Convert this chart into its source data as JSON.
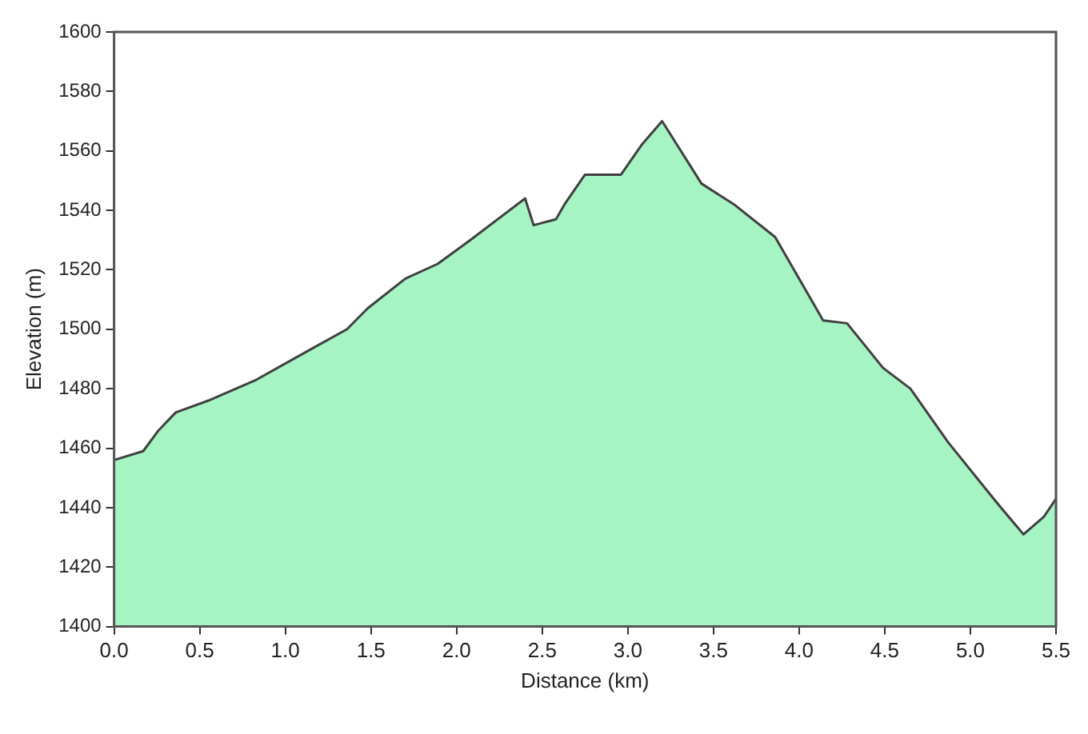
{
  "chart_data": {
    "type": "area",
    "xlabel": "Distance (km)",
    "ylabel": "Elevation (m)",
    "x": [
      0,
      0.17,
      0.26,
      0.36,
      0.55,
      0.83,
      1.14,
      1.36,
      1.48,
      1.7,
      1.89,
      2.08,
      2.4,
      2.45,
      2.58,
      2.63,
      2.75,
      2.96,
      3.08,
      3.2,
      3.43,
      3.62,
      3.86,
      4.14,
      4.28,
      4.49,
      4.65,
      4.87,
      5.15,
      5.31,
      5.43,
      5.5
    ],
    "series": [
      {
        "color": "#404040",
        "values": [
          1456,
          1459,
          1466,
          1472,
          1476,
          1483,
          1493,
          1500,
          1507,
          1517,
          1522,
          1530,
          1544,
          1535,
          1537,
          1542,
          1552,
          1552,
          1562,
          1570,
          1549,
          1542,
          1531,
          1503,
          1502,
          1487,
          1480,
          1462,
          1442,
          1431,
          1437,
          1443
        ]
      }
    ],
    "xlim": [
      0,
      5.5
    ],
    "ylim": [
      1400,
      1600
    ],
    "xticks": [
      {
        "value": 0,
        "label": "0.0"
      },
      {
        "value": 0.5,
        "label": "0.5"
      },
      {
        "value": 1,
        "label": "1.0"
      },
      {
        "value": 1.5,
        "label": "1.5"
      },
      {
        "value": 2,
        "label": "2.0"
      },
      {
        "value": 2.5,
        "label": "2.5"
      },
      {
        "value": 3,
        "label": "3.0"
      },
      {
        "value": 3.5,
        "label": "3.5"
      },
      {
        "value": 4,
        "label": "4.0"
      },
      {
        "value": 4.5,
        "label": "4.5"
      },
      {
        "value": 5,
        "label": "5.0"
      },
      {
        "value": 5.5,
        "label": "5.5"
      }
    ],
    "yticks": [
      1400,
      1420,
      1440,
      1460,
      1480,
      1500,
      1520,
      1540,
      1560,
      1580,
      1600
    ],
    "grid": false,
    "legend": false,
    "marker": "none",
    "line_style": "solid"
  }
}
